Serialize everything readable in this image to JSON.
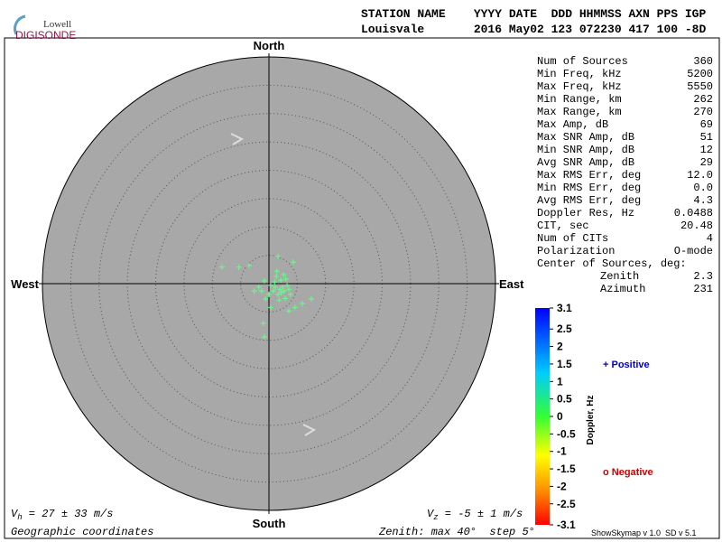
{
  "header": {
    "logo_top": "Lowell",
    "logo_bottom": "DIGISONDE",
    "columns": "STATION NAME    YYYY DATE  DDD HHMMSS AXN PPS IGP",
    "values": "Louisvale       2016 May02 123 072230 417 100 -8D"
  },
  "stats": {
    "rows": [
      [
        "Num of Sources",
        "360"
      ],
      [
        "Min Freq, kHz",
        "5200"
      ],
      [
        "Max Freq, kHz",
        "5550"
      ],
      [
        "Min Range, km",
        "262"
      ],
      [
        "Max Range, km",
        "270"
      ],
      [
        "Max Amp, dB",
        "69"
      ],
      [
        "Max SNR Amp, dB",
        "51"
      ],
      [
        "Min SNR Amp, dB",
        "12"
      ],
      [
        "Avg SNR Amp, dB",
        "29"
      ],
      [
        "Max RMS Err, deg",
        "12.0"
      ],
      [
        "Min RMS Err, deg",
        "0.0"
      ],
      [
        "Avg RMS Err, deg",
        "4.3"
      ],
      [
        "Doppler Res, Hz",
        "0.0488"
      ],
      [
        "CIT, sec",
        "20.48"
      ],
      [
        "Num of CITs",
        "4"
      ],
      [
        "Polarization",
        "O-mode"
      ]
    ],
    "center_label": "Center of Sources, deg:",
    "center_rows": [
      [
        "Zenith",
        "2.3"
      ],
      [
        "Azimuth",
        "231"
      ]
    ]
  },
  "chart_data": {
    "type": "skymap",
    "directions": {
      "north": "North",
      "south": "South",
      "west": "West",
      "east": "East"
    },
    "zenith_max": 40,
    "zenith_step": 5,
    "color": "#66ff88",
    "points": {
      "x": [
        -8.3,
        -5.3,
        -3.5,
        1.6,
        4.3,
        -0.8,
        -1.3,
        -0.6,
        -1.0,
        -0.8,
        7.5,
        5.9,
        4.6,
        3.5,
        0.3,
        1.1,
        1.9,
        2.2,
        2.7,
        1.6,
        0.8,
        3.2,
        2.1,
        1.3,
        2.6,
        0.3,
        2.9,
        3.8,
        1.8,
        1.0,
        2.4,
        0.0,
        3.5,
        1.4,
        -1.8,
        -2.6,
        3.0
      ],
      "y": [
        2.9,
        2.9,
        3.2,
        4.8,
        3.8,
        0.5,
        -1.3,
        -2.7,
        -7.0,
        -9.4,
        -2.7,
        -3.5,
        -4.2,
        -4.8,
        -4.2,
        -0.6,
        -1.0,
        -1.6,
        -1.3,
        -1.9,
        -1.3,
        -0.3,
        0.6,
        1.3,
        1.6,
        -0.3,
        -2.6,
        -1.9,
        -2.9,
        0.3,
        -0.6,
        -1.9,
        -1.0,
        2.2,
        -0.6,
        -1.3,
        0.8
      ]
    },
    "colorbar": {
      "label": "Doppler, Hz",
      "lim": [
        -3.1,
        3.1
      ],
      "ticks": [
        3.1,
        2.5,
        2,
        1.5,
        1,
        0.5,
        0,
        -0.5,
        -1,
        -1.5,
        -2,
        -2.5,
        -3.1
      ]
    },
    "legend": {
      "positive": "+ Positive",
      "negative": "o Negative"
    }
  },
  "footer": {
    "vh": {
      "symbol": "V",
      "sub": "h",
      "text": " = 27 ± 33 m/s"
    },
    "vz": {
      "symbol": "V",
      "sub": "z",
      "text": " = -5 ± 1 m/s"
    },
    "coords": "Geographic coordinates",
    "zenith_label": "Zenith: max ",
    "degree": "°",
    "step_label": "  step ",
    "version": "ShowSkymap v 1.0  SD v 5.1"
  }
}
